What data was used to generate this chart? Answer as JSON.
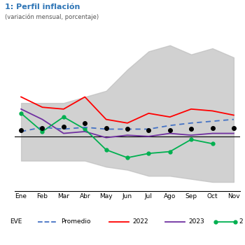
{
  "title": "1: Perfil inflación",
  "subtitle": "(variación mensual, porcentaje)",
  "title_color": "#2E75B6",
  "months": [
    "Ene",
    "Feb",
    "Mar",
    "Abr",
    "May",
    "Jun",
    "Jul",
    "Ago",
    "Sep",
    "Oct",
    "Nov"
  ],
  "band_upper": [
    0.55,
    0.55,
    0.55,
    0.65,
    0.75,
    1.1,
    1.4,
    1.5,
    1.35,
    1.45,
    1.3
  ],
  "band_lower": [
    -0.4,
    -0.4,
    -0.4,
    -0.4,
    -0.5,
    -0.55,
    -0.65,
    -0.65,
    -0.7,
    -0.75,
    -0.75
  ],
  "line_2022": [
    0.65,
    0.48,
    0.45,
    0.65,
    0.28,
    0.22,
    0.38,
    0.32,
    0.45,
    0.42,
    0.35
  ],
  "line_2023": [
    0.45,
    0.28,
    0.05,
    0.08,
    -0.02,
    0.02,
    0.0,
    0.05,
    0.02,
    0.05,
    0.05
  ],
  "line_2024": [
    0.38,
    0.08,
    0.32,
    0.12,
    -0.22,
    -0.35,
    -0.28,
    -0.25,
    -0.05,
    -0.12,
    null
  ],
  "line_eve": [
    0.08,
    0.15,
    0.12,
    0.15,
    0.12,
    0.12,
    0.12,
    0.18,
    0.22,
    0.25,
    0.28
  ],
  "dots": [
    0.1,
    0.14,
    0.16,
    0.22,
    0.14,
    0.12,
    0.1,
    0.1,
    0.12,
    0.14,
    0.14
  ],
  "color_2022": "#FF0000",
  "color_2023": "#7030A0",
  "color_2024": "#00B050",
  "color_eve": "#4472C4",
  "color_band": "#BEBEBE",
  "color_dots": "#000000",
  "ylim": [
    -0.9,
    1.6
  ],
  "figsize": [
    3.5,
    3.5
  ],
  "dpi": 100
}
